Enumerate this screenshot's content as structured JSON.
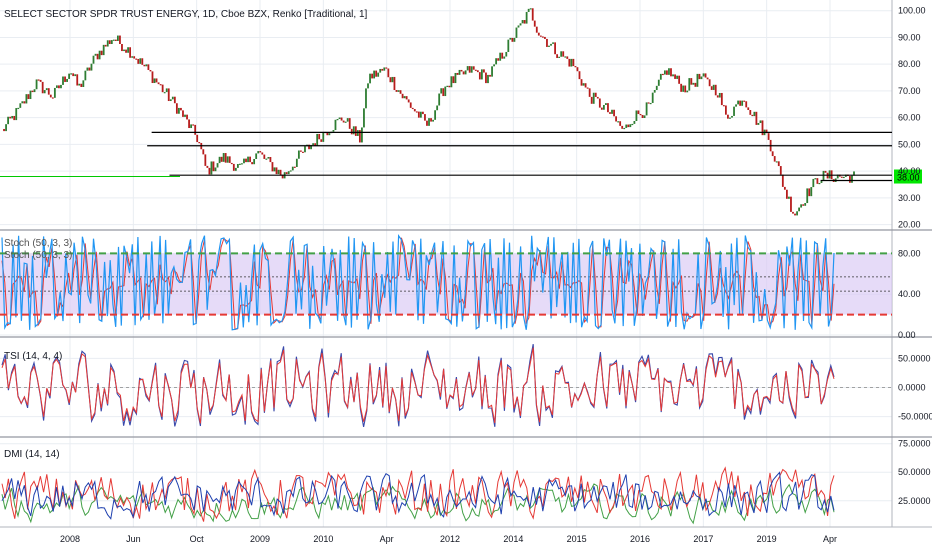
{
  "header": {
    "title": "SELECT SECTOR SPDR TRUST ENERGY, 1D, Cboe BZX, Renko [Traditional, 1]"
  },
  "colors": {
    "background": "#ffffff",
    "grid": "#e9edf2",
    "renko_up": "#2e7d32",
    "renko_down": "#b71c1c",
    "level_line": "#000000",
    "price_line": "#00c800",
    "price_badge": "#00e600",
    "stoch_k": "#2196f3",
    "stoch_d": "#e53935",
    "stoch_band": "#d8c8f5",
    "stoch_upper": "#43a047",
    "stoch_lower": "#e53935",
    "tsi_main": "#3949ab",
    "tsi_signal": "#e53935",
    "dmi_plus": "#43a047",
    "dmi_minus": "#e53935",
    "dmi_adx": "#1e40af"
  },
  "x_axis": {
    "labels": [
      "2008",
      "Jun",
      "Oct",
      "2009",
      "2010",
      "Apr",
      "2012",
      "2014",
      "2015",
      "2016",
      "2017",
      "2019",
      "Apr"
    ]
  },
  "chart_data": [
    {
      "type": "line",
      "name": "price_renko",
      "yticks": [
        "100.00",
        "90.00",
        "80.00",
        "70.00",
        "60.00",
        "50.00",
        "40.00",
        "30.00",
        "20.00"
      ],
      "ylim": [
        18,
        104
      ],
      "path": [
        [
          0,
          55
        ],
        [
          0.02,
          63
        ],
        [
          0.04,
          73
        ],
        [
          0.06,
          68
        ],
        [
          0.08,
          78
        ],
        [
          0.09,
          71
        ],
        [
          0.11,
          83
        ],
        [
          0.13,
          90
        ],
        [
          0.15,
          85
        ],
        [
          0.17,
          78
        ],
        [
          0.19,
          70
        ],
        [
          0.21,
          62
        ],
        [
          0.23,
          52
        ],
        [
          0.24,
          40
        ],
        [
          0.26,
          45
        ],
        [
          0.28,
          41
        ],
        [
          0.3,
          47
        ],
        [
          0.33,
          38
        ],
        [
          0.35,
          46
        ],
        [
          0.38,
          55
        ],
        [
          0.4,
          60
        ],
        [
          0.42,
          52
        ],
        [
          0.43,
          75
        ],
        [
          0.45,
          78
        ],
        [
          0.47,
          68
        ],
        [
          0.5,
          57
        ],
        [
          0.52,
          72
        ],
        [
          0.55,
          78
        ],
        [
          0.57,
          75
        ],
        [
          0.59,
          85
        ],
        [
          0.62,
          100
        ],
        [
          0.63,
          92
        ],
        [
          0.65,
          85
        ],
        [
          0.67,
          80
        ],
        [
          0.69,
          68
        ],
        [
          0.71,
          63
        ],
        [
          0.73,
          55
        ],
        [
          0.74,
          60
        ],
        [
          0.76,
          64
        ],
        [
          0.77,
          72
        ],
        [
          0.78,
          78
        ],
        [
          0.8,
          71
        ],
        [
          0.82,
          75
        ],
        [
          0.84,
          70
        ],
        [
          0.85,
          60
        ],
        [
          0.87,
          68
        ],
        [
          0.88,
          62
        ],
        [
          0.9,
          52
        ],
        [
          0.92,
          32
        ],
        [
          0.93,
          24
        ],
        [
          0.94,
          29
        ],
        [
          0.95,
          34
        ],
        [
          0.96,
          38
        ]
      ],
      "levels": [
        {
          "y": 54.5,
          "x_from": 0.17,
          "x_to": 1.0
        },
        {
          "y": 49.5,
          "x_from": 0.165,
          "x_to": 1.0
        },
        {
          "y": 38.5,
          "x_from": 0.19,
          "x_to": 1.0
        },
        {
          "y": 36.5,
          "x_from": 0.92,
          "x_to": 1.0
        }
      ],
      "last_price": 38,
      "last_price_label": "38.00"
    },
    {
      "type": "line",
      "name": "stochastic",
      "labels": [
        "Stoch (50, 3, 3)",
        "Stoch (50, 3, 3)"
      ],
      "yticks": [
        "80.00",
        "40.00",
        "0.00"
      ],
      "ylim": [
        -2,
        102
      ],
      "upper": 80,
      "lower": 20,
      "mid_lines": [
        57,
        43
      ]
    },
    {
      "type": "line",
      "name": "tsi",
      "label": "TSI (14, 4, 4)",
      "yticks": [
        "50.0000",
        "0.0000",
        "-50.0000"
      ],
      "ylim": [
        -85,
        85
      ],
      "zero": 0
    },
    {
      "type": "line",
      "name": "dmi",
      "label": "DMI (14, 14)",
      "yticks": [
        "75.0000",
        "50.0000",
        "25.0000"
      ],
      "ylim": [
        2,
        80
      ]
    }
  ]
}
